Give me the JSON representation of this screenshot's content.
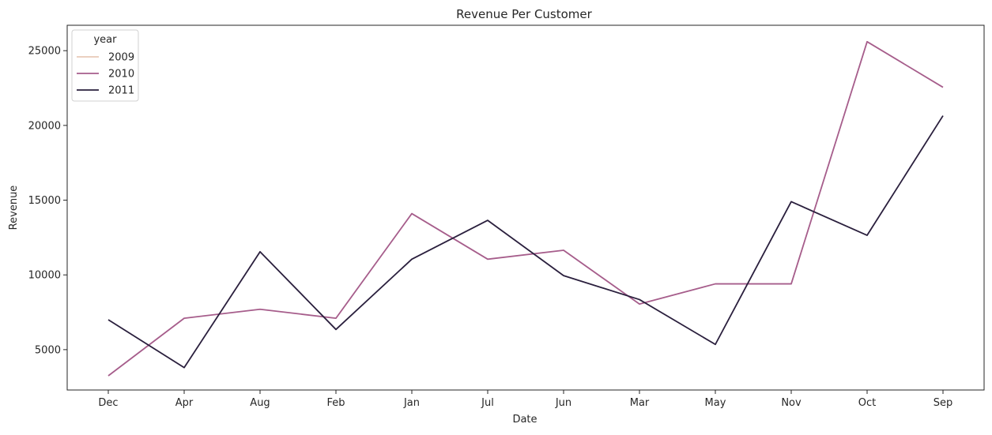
{
  "chart_data": {
    "type": "line",
    "title": "Revenue Per Customer",
    "xlabel": "Date",
    "ylabel": "Revenue",
    "categories": [
      "Dec",
      "Apr",
      "Aug",
      "Feb",
      "Jan",
      "Jul",
      "Jun",
      "Mar",
      "May",
      "Nov",
      "Oct",
      "Sep"
    ],
    "yticks": [
      5000,
      10000,
      15000,
      20000,
      25000
    ],
    "ylim": [
      2300,
      26700
    ],
    "grid": false,
    "legend": {
      "title": "year",
      "placement": "top-left"
    },
    "series": [
      {
        "name": "2009",
        "color": "#e8c9b7",
        "values": [
          null,
          null,
          null,
          null,
          null,
          null,
          null,
          null,
          null,
          null,
          null,
          null
        ]
      },
      {
        "name": "2010",
        "color": "#a65d8b",
        "values": [
          3250,
          7100,
          7700,
          7100,
          14100,
          11050,
          11650,
          8050,
          9400,
          9400,
          25600,
          22550
        ]
      },
      {
        "name": "2011",
        "color": "#2a1f3d",
        "values": [
          7000,
          3800,
          11550,
          6350,
          11050,
          13650,
          9950,
          8350,
          5350,
          14900,
          12650,
          20650
        ]
      }
    ]
  }
}
